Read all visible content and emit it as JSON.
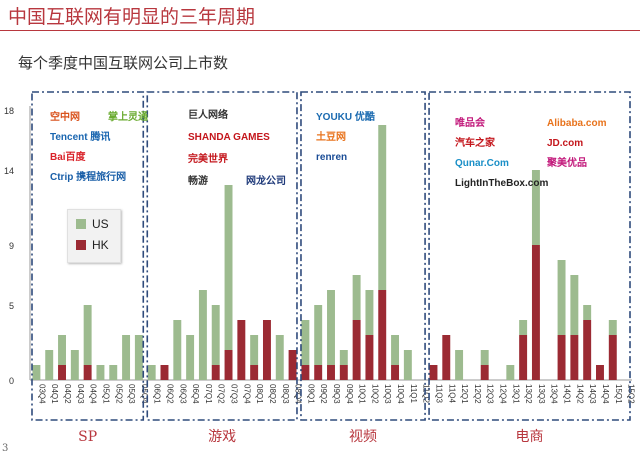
{
  "header": {
    "title": "中国互联网有明显的三年周期",
    "subtitle": "每个季度中国互联网公司上市数",
    "page_number": "3"
  },
  "legend": {
    "items": [
      {
        "label": "US",
        "color": "#9dbb8f"
      },
      {
        "label": "HK",
        "color": "#9b2a33"
      }
    ]
  },
  "logos": {
    "sp": [
      {
        "name": "kongzhong-logo",
        "text": "空中网",
        "color": "#d9531e"
      },
      {
        "name": "linktone-logo",
        "text": "掌上灵通",
        "color": "#6aab2f"
      },
      {
        "name": "tencent-logo",
        "text": "Tencent 腾讯",
        "color": "#1a66b0"
      },
      {
        "name": "baidu-logo",
        "text": "Bai百度",
        "color": "#d92128"
      },
      {
        "name": "ctrip-logo",
        "text": "Ctrip 携程旅行网",
        "color": "#1a5fa8"
      }
    ],
    "games": [
      {
        "name": "giant-logo",
        "text": "巨人网络",
        "color": "#333333"
      },
      {
        "name": "shanda-logo",
        "text": "SHANDA GAMES",
        "color": "#c4161c"
      },
      {
        "name": "perfect-world-logo",
        "text": "完美世界",
        "color": "#c4161c"
      },
      {
        "name": "changyou-logo",
        "text": "畅游",
        "color": "#333333"
      },
      {
        "name": "netdragon-logo",
        "text": "网龙公司",
        "color": "#1f3a7a"
      }
    ],
    "video": [
      {
        "name": "youku-logo",
        "text": "YOUKU 优酷",
        "color": "#1a6ab0"
      },
      {
        "name": "tudou-logo",
        "text": "土豆网",
        "color": "#e8731c"
      },
      {
        "name": "renren-logo",
        "text": "renren",
        "color": "#1a4c96"
      }
    ],
    "ecommerce": [
      {
        "name": "vipshop-logo",
        "text": "唯品会",
        "color": "#c2197b"
      },
      {
        "name": "alibaba-logo",
        "text": "Alibaba.com",
        "color": "#e8731c"
      },
      {
        "name": "autohome-logo",
        "text": "汽车之家",
        "color": "#c4161c"
      },
      {
        "name": "jd-logo",
        "text": "JD.com",
        "color": "#c4161c"
      },
      {
        "name": "qunar-logo",
        "text": "Qunar.Com",
        "color": "#1a8fc7"
      },
      {
        "name": "jumei-logo",
        "text": "聚美优品",
        "color": "#c2197b"
      },
      {
        "name": "lightinthebox-logo",
        "text": "LightInTheBox.com",
        "color": "#222222"
      }
    ]
  },
  "chart_data": {
    "type": "bar",
    "stacked": true,
    "title": "每个季度中国互联网公司上市数",
    "ylim": [
      0,
      18
    ],
    "yticks": [
      0,
      5,
      9,
      14,
      18
    ],
    "categories": [
      "03Q4",
      "04Q1",
      "04Q2",
      "04Q3",
      "04Q4",
      "05Q1",
      "05Q2",
      "05Q3",
      "05Q4",
      "06Q1",
      "06Q2",
      "06Q3",
      "06Q4",
      "07Q1",
      "07Q2",
      "07Q3",
      "07Q4",
      "08Q1",
      "08Q2",
      "08Q3",
      "08Q4",
      "09Q1",
      "09Q2",
      "09Q3",
      "09Q4",
      "10Q1",
      "10Q2",
      "10Q3",
      "10Q4",
      "11Q1",
      "11Q2",
      "11Q3",
      "11Q4",
      "12Q1",
      "12Q2",
      "12Q3",
      "12Q4",
      "13Q1",
      "13Q2",
      "13Q3",
      "13Q4",
      "14Q1",
      "14Q2",
      "14Q3",
      "14Q4",
      "15Q1",
      "15Q2"
    ],
    "series": [
      {
        "name": "HK",
        "color": "#9b2a33",
        "values": [
          0,
          0,
          1,
          0,
          1,
          0,
          0,
          0,
          0,
          0,
          1,
          0,
          0,
          0,
          1,
          2,
          4,
          1,
          4,
          0,
          2,
          1,
          1,
          1,
          1,
          4,
          3,
          6,
          1,
          0,
          0,
          1,
          3,
          0,
          0,
          1,
          0,
          0,
          3,
          9,
          0,
          3,
          3,
          4,
          1,
          3,
          0
        ]
      },
      {
        "name": "US",
        "color": "#9dbb8f",
        "values": [
          1,
          2,
          2,
          2,
          4,
          1,
          1,
          3,
          3,
          1,
          0,
          4,
          3,
          6,
          4,
          11,
          0,
          2,
          0,
          3,
          0,
          3,
          4,
          5,
          1,
          3,
          3,
          11,
          2,
          2,
          0,
          0,
          0,
          2,
          0,
          1,
          0,
          1,
          1,
          5,
          0,
          5,
          4,
          1,
          0,
          1,
          0
        ]
      }
    ],
    "groups": [
      {
        "label": "SP"
      },
      {
        "label": "游戏"
      },
      {
        "label": "视频"
      },
      {
        "label": "电商"
      }
    ]
  }
}
